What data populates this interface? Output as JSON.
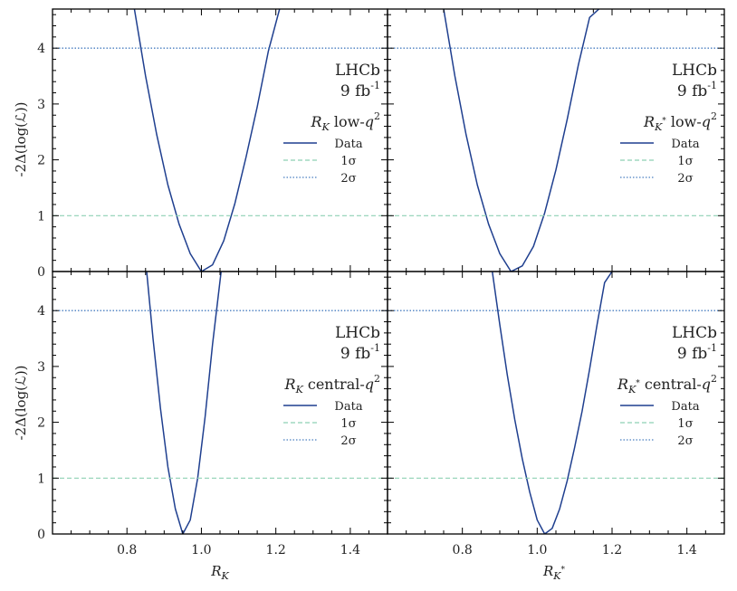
{
  "colors": {
    "data_line": "#1f3f8f",
    "one_sigma": "#8ed1b4",
    "two_sigma": "#4a7fc0"
  },
  "shared": {
    "ylabel": "-2Δ(log(ℒ))",
    "xticks": [
      "0.8",
      "1.0",
      "1.2",
      "1.4"
    ],
    "yticks": [
      "0",
      "1",
      "2",
      "3",
      "4"
    ],
    "experiment": "LHCb",
    "lumi_value": "9 fb",
    "lumi_exp": "-1"
  },
  "chart_data": [
    {
      "type": "line",
      "panel": "top-left",
      "legend": {
        "var": "R",
        "sub": "K",
        "region": "low-",
        "q": "q",
        "qexp": "2",
        "placement": "right"
      },
      "series": [
        {
          "name": "Data",
          "x": [
            0.82,
            0.85,
            0.88,
            0.91,
            0.94,
            0.97,
            1.0,
            1.03,
            1.06,
            1.09,
            1.12,
            1.15,
            1.18,
            1.21
          ],
          "y": [
            4.7,
            3.5,
            2.45,
            1.55,
            0.85,
            0.32,
            0.0,
            0.12,
            0.55,
            1.22,
            2.05,
            2.95,
            3.95,
            4.7
          ]
        },
        {
          "name": "1σ",
          "x": [
            0.6,
            1.5
          ],
          "y": [
            1,
            1
          ]
        },
        {
          "name": "2σ",
          "x": [
            0.6,
            1.5
          ],
          "y": [
            4,
            4
          ]
        }
      ],
      "xlim": [
        0.6,
        1.5
      ],
      "ylim": [
        0,
        4.7
      ]
    },
    {
      "type": "line",
      "panel": "top-right",
      "legend": {
        "var": "R",
        "sub": "K",
        "subexp": "*",
        "region": "low-",
        "q": "q",
        "qexp": "2",
        "placement": "right"
      },
      "series": [
        {
          "name": "Data",
          "x": [
            0.75,
            0.78,
            0.81,
            0.84,
            0.87,
            0.9,
            0.93,
            0.96,
            0.99,
            1.02,
            1.05,
            1.08,
            1.11,
            1.14,
            1.165
          ],
          "y": [
            4.7,
            3.5,
            2.45,
            1.55,
            0.85,
            0.32,
            0.0,
            0.1,
            0.45,
            1.05,
            1.82,
            2.72,
            3.7,
            4.55,
            4.7
          ]
        },
        {
          "name": "1σ",
          "x": [
            0.6,
            1.5
          ],
          "y": [
            1,
            1
          ]
        },
        {
          "name": "2σ",
          "x": [
            0.6,
            1.5
          ],
          "y": [
            4,
            4
          ]
        }
      ],
      "xlim": [
        0.6,
        1.5
      ],
      "ylim": [
        0,
        4.7
      ]
    },
    {
      "type": "line",
      "panel": "bottom-left",
      "xlabel_var": "R",
      "xlabel_sub": "K",
      "legend": {
        "var": "R",
        "sub": "K",
        "region": "central-",
        "q": "q",
        "qexp": "2",
        "placement": "right"
      },
      "series": [
        {
          "name": "Data",
          "x": [
            0.853,
            0.87,
            0.89,
            0.91,
            0.93,
            0.95,
            0.97,
            0.99,
            1.01,
            1.03,
            1.053
          ],
          "y": [
            4.7,
            3.5,
            2.25,
            1.2,
            0.45,
            0.0,
            0.25,
            1.0,
            2.1,
            3.4,
            4.7
          ]
        },
        {
          "name": "1σ",
          "x": [
            0.6,
            1.5
          ],
          "y": [
            1,
            1
          ]
        },
        {
          "name": "2σ",
          "x": [
            0.6,
            1.5
          ],
          "y": [
            4,
            4
          ]
        }
      ],
      "xlim": [
        0.6,
        1.5
      ],
      "ylim": [
        0,
        4.7
      ]
    },
    {
      "type": "line",
      "panel": "bottom-right",
      "xlabel_var": "R",
      "xlabel_sub": "K",
      "xlabel_subexp": "*",
      "legend": {
        "var": "R",
        "sub": "K",
        "subexp": "*",
        "region": "central-",
        "q": "q",
        "qexp": "2",
        "placement": "right"
      },
      "series": [
        {
          "name": "Data",
          "x": [
            0.88,
            0.9,
            0.92,
            0.94,
            0.96,
            0.98,
            1.0,
            1.02,
            1.04,
            1.06,
            1.08,
            1.1,
            1.12,
            1.14,
            1.16,
            1.18,
            1.2
          ],
          "y": [
            4.7,
            3.75,
            2.85,
            2.05,
            1.35,
            0.75,
            0.25,
            0.0,
            0.1,
            0.45,
            0.95,
            1.55,
            2.2,
            2.95,
            3.75,
            4.5,
            4.7
          ]
        },
        {
          "name": "1σ",
          "x": [
            0.6,
            1.5
          ],
          "y": [
            1,
            1
          ]
        },
        {
          "name": "2σ",
          "x": [
            0.6,
            1.5
          ],
          "y": [
            4,
            4
          ]
        }
      ],
      "xlim": [
        0.6,
        1.5
      ],
      "ylim": [
        0,
        4.7
      ]
    }
  ]
}
